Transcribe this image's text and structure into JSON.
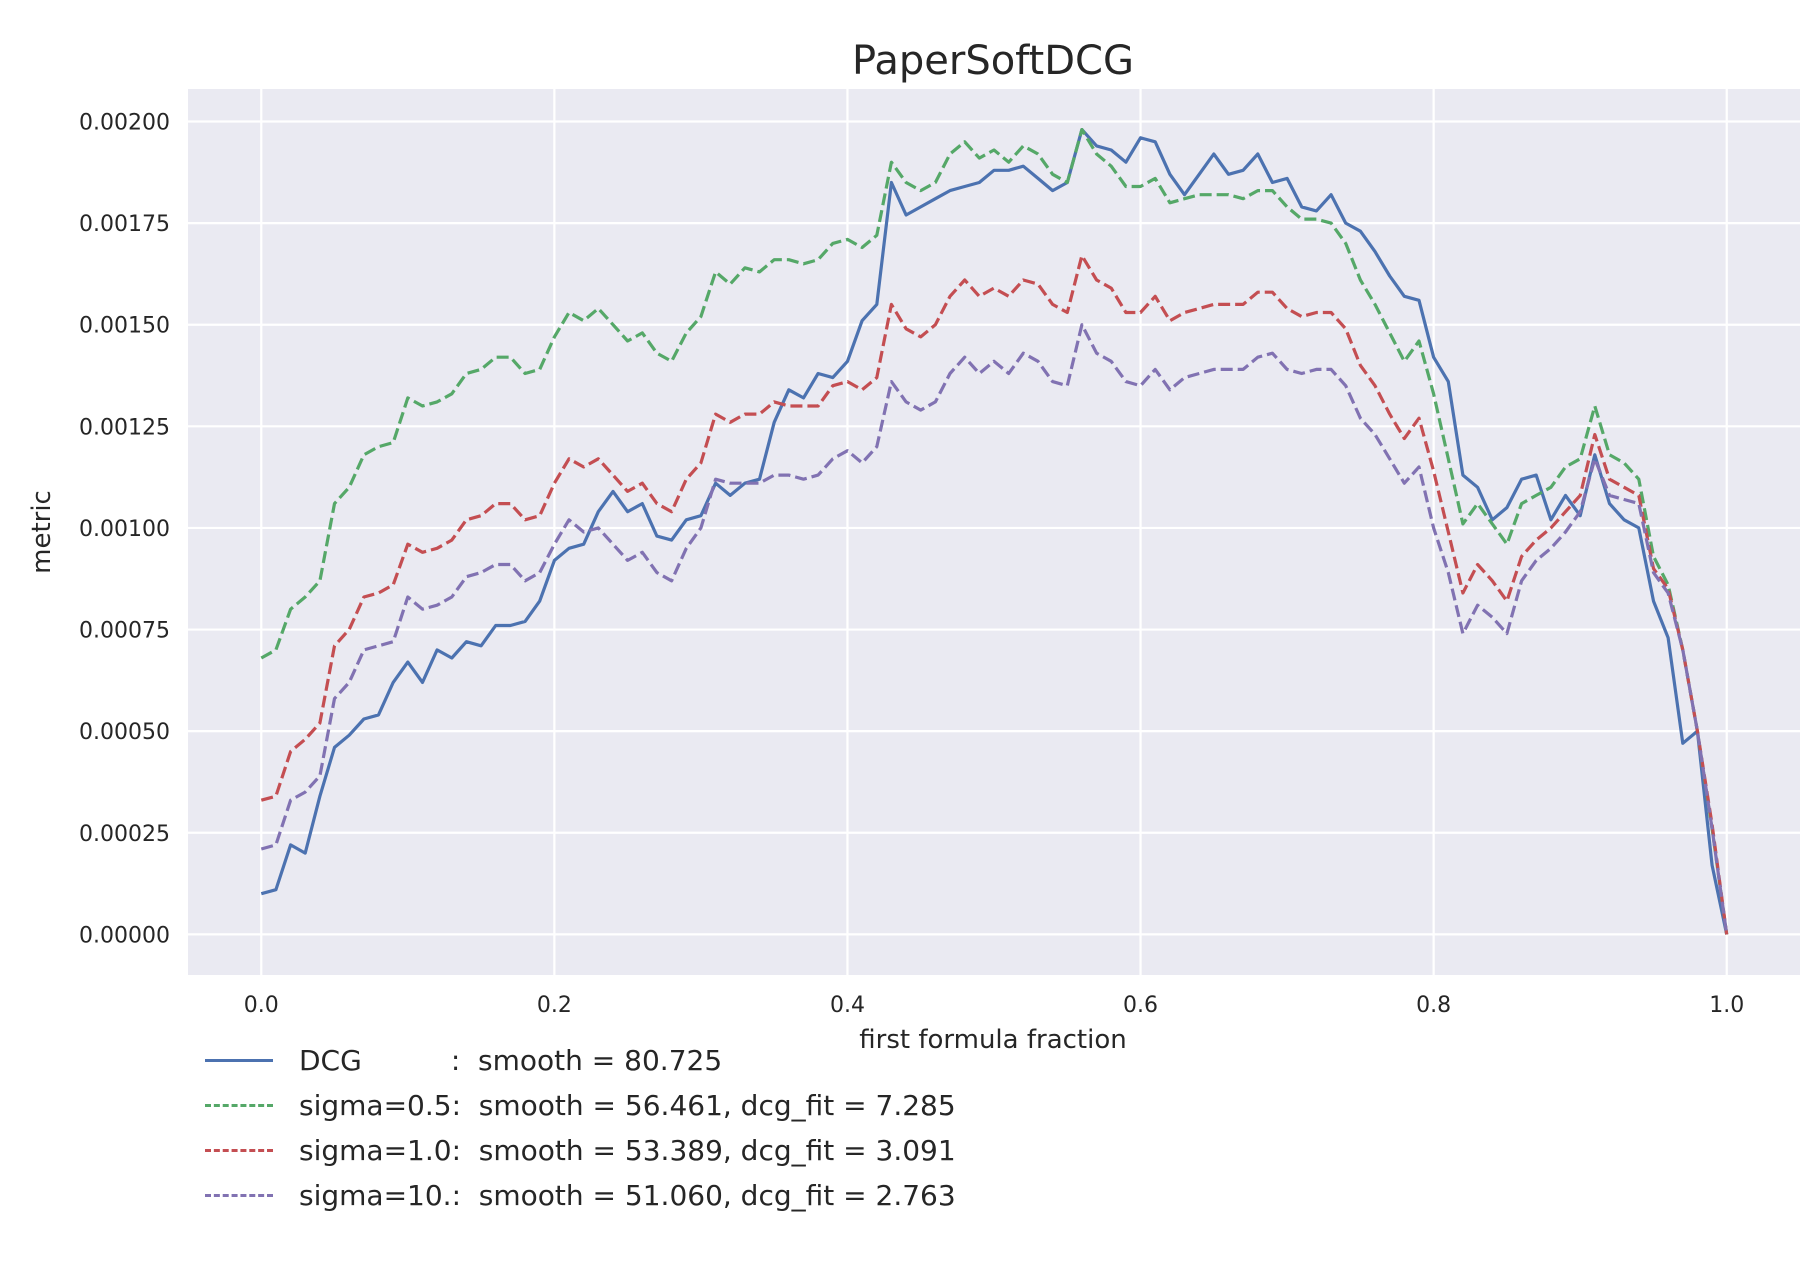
{
  "chart_data": {
    "type": "line",
    "title": "PaperSoftDCG",
    "xlabel": "first formula fraction",
    "ylabel": "metric",
    "xlim": [
      -0.05,
      1.05
    ],
    "ylim": [
      -0.0001,
      0.00208
    ],
    "xticks": [
      0.0,
      0.2,
      0.4,
      0.6,
      0.8,
      1.0
    ],
    "xtick_labels": [
      "0.0",
      "0.2",
      "0.4",
      "0.6",
      "0.8",
      "1.0"
    ],
    "yticks": [
      0,
      0.00025,
      0.0005,
      0.00075,
      0.001,
      0.00125,
      0.0015,
      0.00175,
      0.002
    ],
    "ytick_labels": [
      "0.00000",
      "0.00025",
      "0.00050",
      "0.00075",
      "0.00100",
      "0.00125",
      "0.00150",
      "0.00175",
      "0.00200"
    ],
    "grid": true,
    "legend_position": "below-left",
    "series": [
      {
        "name": "DCG          :  smooth = 80.725",
        "color": "#4c72b0",
        "dash": "solid",
        "x": [
          0.0,
          0.01,
          0.02,
          0.03,
          0.04,
          0.05,
          0.06,
          0.07,
          0.08,
          0.09,
          0.1,
          0.11,
          0.12,
          0.13,
          0.14,
          0.15,
          0.16,
          0.17,
          0.18,
          0.19,
          0.2,
          0.21,
          0.22,
          0.23,
          0.24,
          0.25,
          0.26,
          0.27,
          0.28,
          0.29,
          0.3,
          0.31,
          0.32,
          0.33,
          0.34,
          0.35,
          0.36,
          0.37,
          0.38,
          0.39,
          0.4,
          0.41,
          0.42,
          0.43,
          0.44,
          0.45,
          0.46,
          0.47,
          0.48,
          0.49,
          0.5,
          0.51,
          0.52,
          0.53,
          0.54,
          0.55,
          0.56,
          0.57,
          0.58,
          0.59,
          0.6,
          0.61,
          0.62,
          0.63,
          0.64,
          0.65,
          0.66,
          0.67,
          0.68,
          0.69,
          0.7,
          0.71,
          0.72,
          0.73,
          0.74,
          0.75,
          0.76,
          0.77,
          0.78,
          0.79,
          0.8,
          0.81,
          0.82,
          0.83,
          0.84,
          0.85,
          0.86,
          0.87,
          0.88,
          0.89,
          0.9,
          0.91,
          0.92,
          0.93,
          0.94,
          0.95,
          0.96,
          0.97,
          0.98,
          0.99,
          1.0
        ],
        "y": [
          0.0001,
          0.00011,
          0.00022,
          0.0002,
          0.00034,
          0.00046,
          0.00049,
          0.00053,
          0.00054,
          0.00062,
          0.00067,
          0.00062,
          0.0007,
          0.00068,
          0.00072,
          0.00071,
          0.00076,
          0.00076,
          0.00077,
          0.00082,
          0.00092,
          0.00095,
          0.00096,
          0.00104,
          0.00109,
          0.00104,
          0.00106,
          0.00098,
          0.00097,
          0.00102,
          0.00103,
          0.00111,
          0.00108,
          0.00111,
          0.00112,
          0.00126,
          0.00134,
          0.00132,
          0.00138,
          0.00137,
          0.00141,
          0.00151,
          0.00155,
          0.00185,
          0.00177,
          0.00179,
          0.00181,
          0.00183,
          0.00184,
          0.00185,
          0.00188,
          0.00188,
          0.00189,
          0.00186,
          0.00183,
          0.00185,
          0.00198,
          0.00194,
          0.00193,
          0.0019,
          0.00196,
          0.00195,
          0.00187,
          0.00182,
          0.00187,
          0.00192,
          0.00187,
          0.00188,
          0.00192,
          0.00185,
          0.00186,
          0.00179,
          0.00178,
          0.00182,
          0.00175,
          0.00173,
          0.00168,
          0.00162,
          0.00157,
          0.00156,
          0.00142,
          0.00136,
          0.00113,
          0.0011,
          0.00102,
          0.00105,
          0.00112,
          0.00113,
          0.00102,
          0.00108,
          0.00103,
          0.00118,
          0.00106,
          0.00102,
          0.001,
          0.00082,
          0.00073,
          0.00047,
          0.0005,
          0.00017,
          0.0
        ]
      },
      {
        "name": "sigma=0.5:  smooth = 56.461, dcg_fit = 7.285",
        "color": "#55a868",
        "dash": "dashed",
        "x": [
          0.0,
          0.01,
          0.02,
          0.03,
          0.04,
          0.05,
          0.06,
          0.07,
          0.08,
          0.09,
          0.1,
          0.11,
          0.12,
          0.13,
          0.14,
          0.15,
          0.16,
          0.17,
          0.18,
          0.19,
          0.2,
          0.21,
          0.22,
          0.23,
          0.24,
          0.25,
          0.26,
          0.27,
          0.28,
          0.29,
          0.3,
          0.31,
          0.32,
          0.33,
          0.34,
          0.35,
          0.36,
          0.37,
          0.38,
          0.39,
          0.4,
          0.41,
          0.42,
          0.43,
          0.44,
          0.45,
          0.46,
          0.47,
          0.48,
          0.49,
          0.5,
          0.51,
          0.52,
          0.53,
          0.54,
          0.55,
          0.56,
          0.57,
          0.58,
          0.59,
          0.6,
          0.61,
          0.62,
          0.63,
          0.64,
          0.65,
          0.66,
          0.67,
          0.68,
          0.69,
          0.7,
          0.71,
          0.72,
          0.73,
          0.74,
          0.75,
          0.76,
          0.77,
          0.78,
          0.79,
          0.8,
          0.81,
          0.82,
          0.83,
          0.84,
          0.85,
          0.86,
          0.87,
          0.88,
          0.89,
          0.9,
          0.91,
          0.92,
          0.93,
          0.94,
          0.95,
          0.96,
          0.97,
          0.98,
          0.99,
          1.0
        ],
        "y": [
          0.00068,
          0.0007,
          0.0008,
          0.00083,
          0.00087,
          0.00106,
          0.0011,
          0.00118,
          0.0012,
          0.00121,
          0.00132,
          0.0013,
          0.00131,
          0.00133,
          0.00138,
          0.00139,
          0.00142,
          0.00142,
          0.00138,
          0.00139,
          0.00147,
          0.00153,
          0.00151,
          0.00154,
          0.0015,
          0.00146,
          0.00148,
          0.00143,
          0.00141,
          0.00148,
          0.00152,
          0.00163,
          0.0016,
          0.00164,
          0.00163,
          0.00166,
          0.00166,
          0.00165,
          0.00166,
          0.0017,
          0.00171,
          0.00169,
          0.00172,
          0.0019,
          0.00185,
          0.00183,
          0.00185,
          0.00192,
          0.00195,
          0.00191,
          0.00193,
          0.0019,
          0.00194,
          0.00192,
          0.00187,
          0.00185,
          0.00198,
          0.00192,
          0.00189,
          0.00184,
          0.00184,
          0.00186,
          0.0018,
          0.00181,
          0.00182,
          0.00182,
          0.00182,
          0.00181,
          0.00183,
          0.00183,
          0.00179,
          0.00176,
          0.00176,
          0.00175,
          0.0017,
          0.00161,
          0.00155,
          0.00148,
          0.00141,
          0.00146,
          0.00133,
          0.00117,
          0.00101,
          0.00106,
          0.00101,
          0.00096,
          0.00106,
          0.00108,
          0.0011,
          0.00115,
          0.00117,
          0.0013,
          0.00118,
          0.00116,
          0.00112,
          0.00093,
          0.00086,
          0.0007,
          0.0005,
          0.00026,
          0.0
        ]
      },
      {
        "name": "sigma=1.0:  smooth = 53.389, dcg_fit = 3.091",
        "color": "#c44e52",
        "dash": "dashed",
        "x": [
          0.0,
          0.01,
          0.02,
          0.03,
          0.04,
          0.05,
          0.06,
          0.07,
          0.08,
          0.09,
          0.1,
          0.11,
          0.12,
          0.13,
          0.14,
          0.15,
          0.16,
          0.17,
          0.18,
          0.19,
          0.2,
          0.21,
          0.22,
          0.23,
          0.24,
          0.25,
          0.26,
          0.27,
          0.28,
          0.29,
          0.3,
          0.31,
          0.32,
          0.33,
          0.34,
          0.35,
          0.36,
          0.37,
          0.38,
          0.39,
          0.4,
          0.41,
          0.42,
          0.43,
          0.44,
          0.45,
          0.46,
          0.47,
          0.48,
          0.49,
          0.5,
          0.51,
          0.52,
          0.53,
          0.54,
          0.55,
          0.56,
          0.57,
          0.58,
          0.59,
          0.6,
          0.61,
          0.62,
          0.63,
          0.64,
          0.65,
          0.66,
          0.67,
          0.68,
          0.69,
          0.7,
          0.71,
          0.72,
          0.73,
          0.74,
          0.75,
          0.76,
          0.77,
          0.78,
          0.79,
          0.8,
          0.81,
          0.82,
          0.83,
          0.84,
          0.85,
          0.86,
          0.87,
          0.88,
          0.89,
          0.9,
          0.91,
          0.92,
          0.93,
          0.94,
          0.95,
          0.96,
          0.97,
          0.98,
          0.99,
          1.0
        ],
        "y": [
          0.00033,
          0.00034,
          0.00045,
          0.00048,
          0.00052,
          0.00071,
          0.00075,
          0.00083,
          0.00084,
          0.00086,
          0.00096,
          0.00094,
          0.00095,
          0.00097,
          0.00102,
          0.00103,
          0.00106,
          0.00106,
          0.00102,
          0.00103,
          0.00111,
          0.00117,
          0.00115,
          0.00117,
          0.00113,
          0.00109,
          0.00111,
          0.00106,
          0.00104,
          0.00112,
          0.00116,
          0.00128,
          0.00126,
          0.00128,
          0.00128,
          0.00131,
          0.0013,
          0.0013,
          0.0013,
          0.00135,
          0.00136,
          0.00134,
          0.00137,
          0.00155,
          0.00149,
          0.00147,
          0.0015,
          0.00157,
          0.00161,
          0.00157,
          0.00159,
          0.00157,
          0.00161,
          0.0016,
          0.00155,
          0.00153,
          0.00167,
          0.00161,
          0.00159,
          0.00153,
          0.00153,
          0.00157,
          0.00151,
          0.00153,
          0.00154,
          0.00155,
          0.00155,
          0.00155,
          0.00158,
          0.00158,
          0.00154,
          0.00152,
          0.00153,
          0.00153,
          0.00149,
          0.0014,
          0.00135,
          0.00128,
          0.00122,
          0.00127,
          0.00114,
          0.00099,
          0.00084,
          0.00091,
          0.00087,
          0.00082,
          0.00093,
          0.00097,
          0.001,
          0.00104,
          0.00108,
          0.00123,
          0.00112,
          0.0011,
          0.00108,
          0.0009,
          0.00085,
          0.0007,
          0.0005,
          0.00027,
          0.0
        ]
      },
      {
        "name": "sigma=10.:  smooth = 51.060, dcg_fit = 2.763",
        "color": "#8172b2",
        "dash": "dashed",
        "x": [
          0.0,
          0.01,
          0.02,
          0.03,
          0.04,
          0.05,
          0.06,
          0.07,
          0.08,
          0.09,
          0.1,
          0.11,
          0.12,
          0.13,
          0.14,
          0.15,
          0.16,
          0.17,
          0.18,
          0.19,
          0.2,
          0.21,
          0.22,
          0.23,
          0.24,
          0.25,
          0.26,
          0.27,
          0.28,
          0.29,
          0.3,
          0.31,
          0.32,
          0.33,
          0.34,
          0.35,
          0.36,
          0.37,
          0.38,
          0.39,
          0.4,
          0.41,
          0.42,
          0.43,
          0.44,
          0.45,
          0.46,
          0.47,
          0.48,
          0.49,
          0.5,
          0.51,
          0.52,
          0.53,
          0.54,
          0.55,
          0.56,
          0.57,
          0.58,
          0.59,
          0.6,
          0.61,
          0.62,
          0.63,
          0.64,
          0.65,
          0.66,
          0.67,
          0.68,
          0.69,
          0.7,
          0.71,
          0.72,
          0.73,
          0.74,
          0.75,
          0.76,
          0.77,
          0.78,
          0.79,
          0.8,
          0.81,
          0.82,
          0.83,
          0.84,
          0.85,
          0.86,
          0.87,
          0.88,
          0.89,
          0.9,
          0.91,
          0.92,
          0.93,
          0.94,
          0.95,
          0.96,
          0.97,
          0.98,
          0.99,
          1.0
        ],
        "y": [
          0.00021,
          0.00022,
          0.00033,
          0.00035,
          0.00039,
          0.00058,
          0.00062,
          0.0007,
          0.00071,
          0.00072,
          0.00083,
          0.0008,
          0.00081,
          0.00083,
          0.00088,
          0.00089,
          0.00091,
          0.00091,
          0.00087,
          0.00089,
          0.00096,
          0.00102,
          0.00099,
          0.001,
          0.00096,
          0.00092,
          0.00094,
          0.00089,
          0.00087,
          0.00095,
          0.001,
          0.00112,
          0.00111,
          0.00111,
          0.00111,
          0.00113,
          0.00113,
          0.00112,
          0.00113,
          0.00117,
          0.00119,
          0.00116,
          0.0012,
          0.00136,
          0.00131,
          0.00129,
          0.00131,
          0.00138,
          0.00142,
          0.00138,
          0.00141,
          0.00138,
          0.00143,
          0.00141,
          0.00136,
          0.00135,
          0.0015,
          0.00143,
          0.00141,
          0.00136,
          0.00135,
          0.00139,
          0.00134,
          0.00137,
          0.00138,
          0.00139,
          0.00139,
          0.00139,
          0.00142,
          0.00143,
          0.00139,
          0.00138,
          0.00139,
          0.00139,
          0.00135,
          0.00127,
          0.00123,
          0.00117,
          0.00111,
          0.00115,
          0.001,
          0.00089,
          0.00074,
          0.00081,
          0.00078,
          0.00074,
          0.00087,
          0.00092,
          0.00095,
          0.00099,
          0.00104,
          0.00117,
          0.00108,
          0.00107,
          0.00106,
          0.00089,
          0.00084,
          0.0007,
          0.0005,
          0.00026,
          0.0
        ]
      }
    ]
  }
}
